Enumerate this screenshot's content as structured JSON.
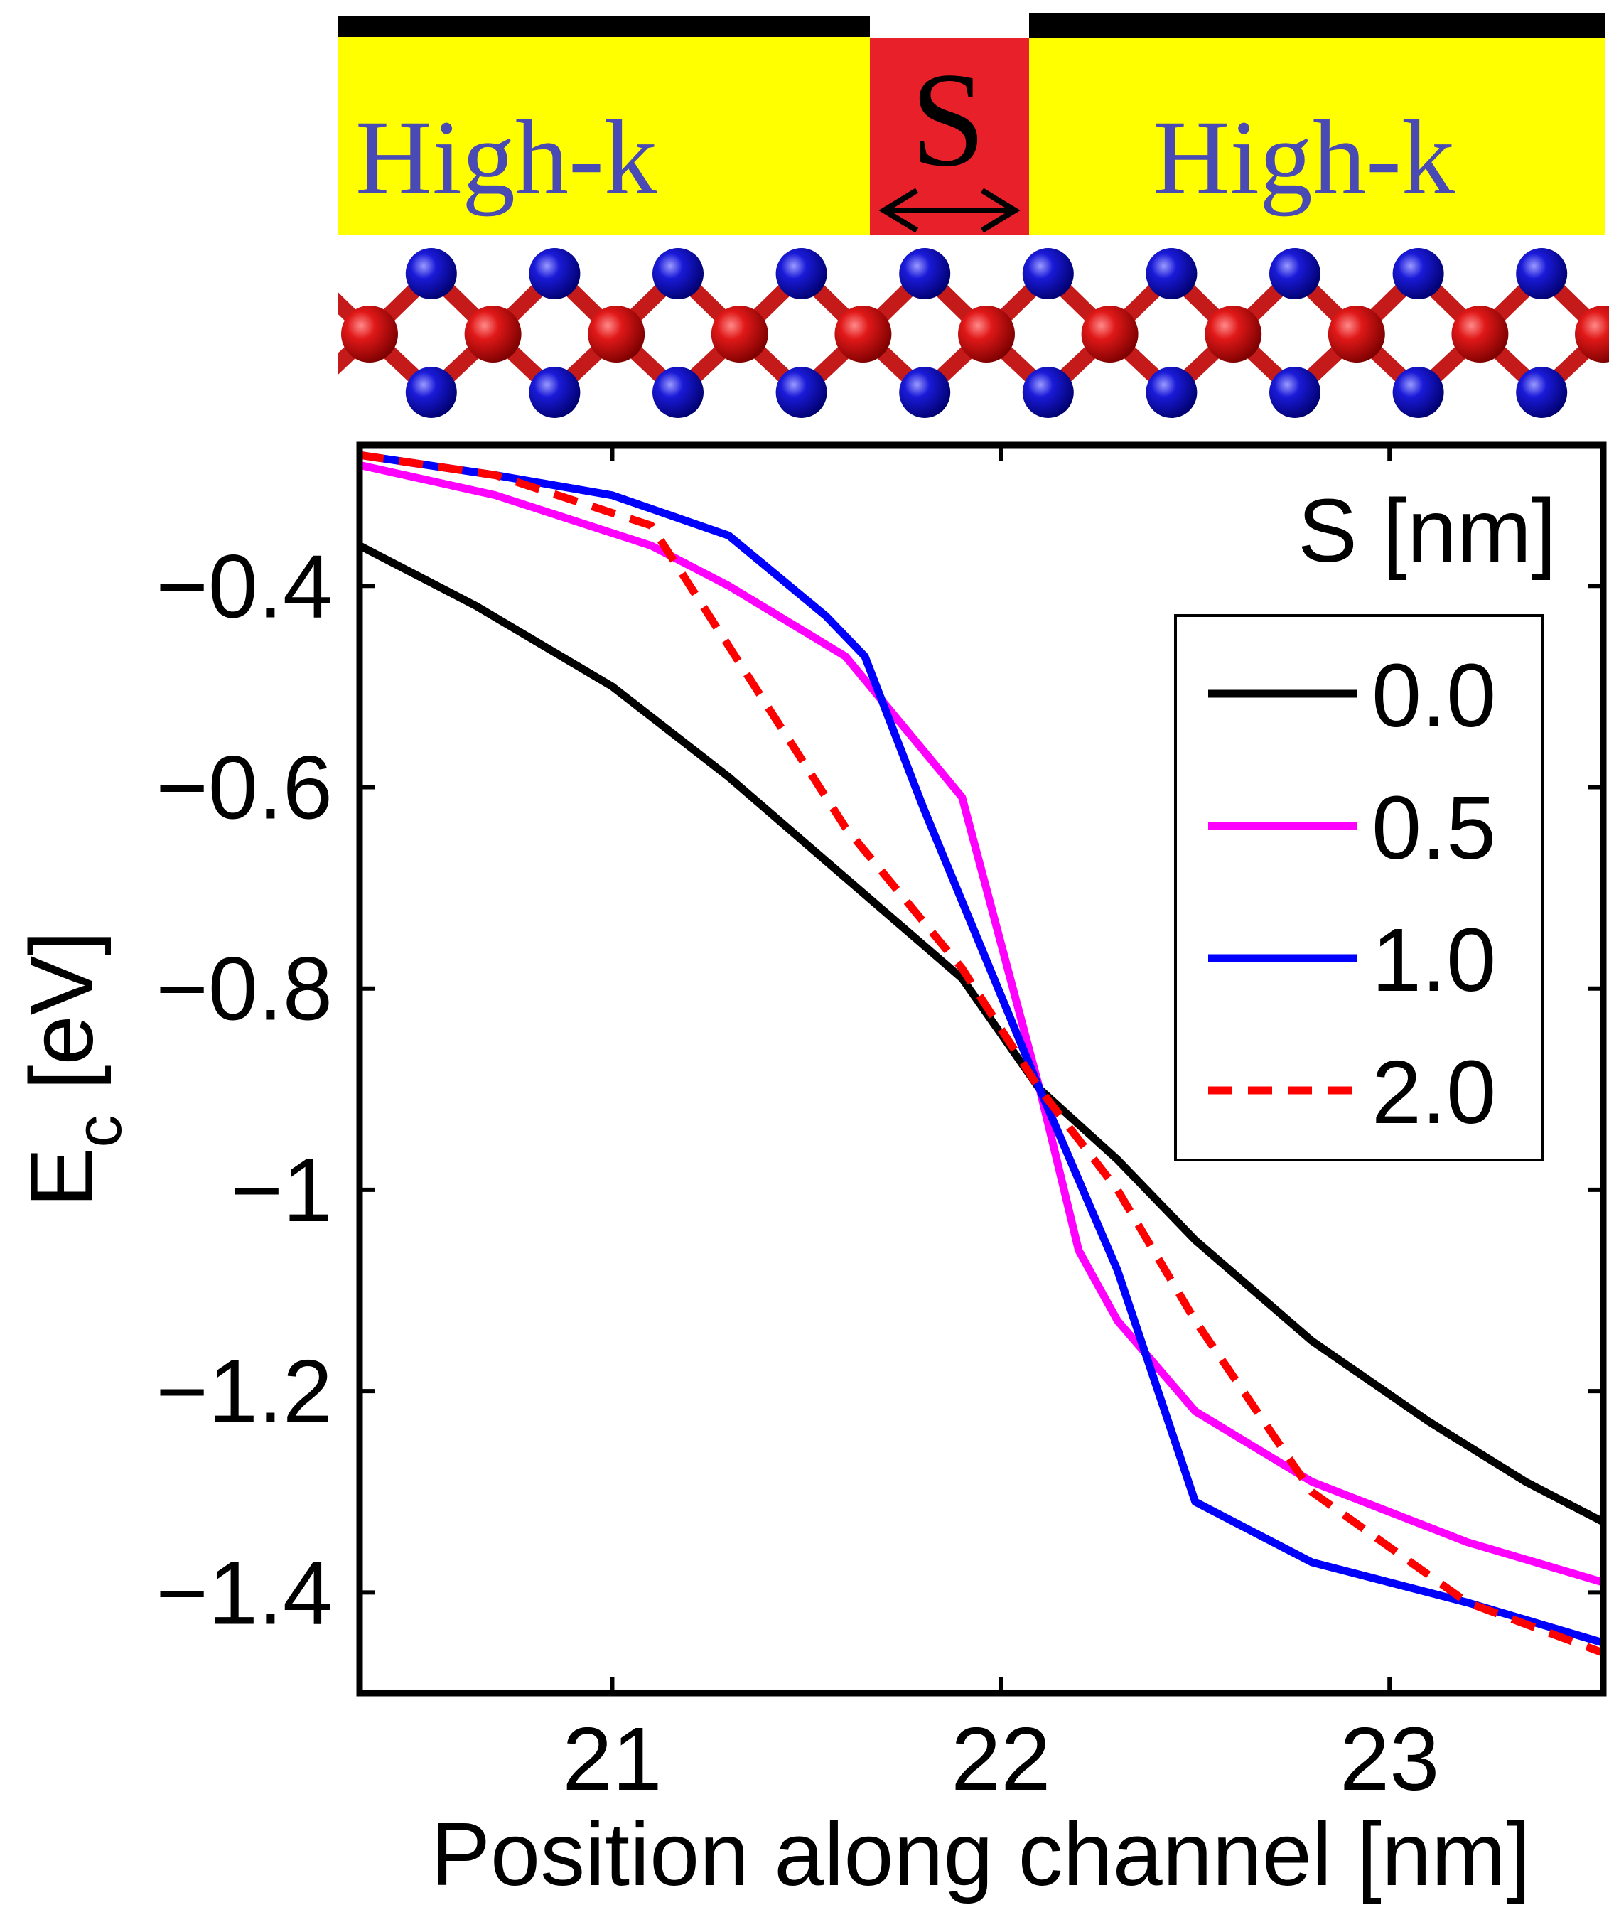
{
  "schematic": {
    "left_dielectric_label": "High-k",
    "right_dielectric_label": "High-k",
    "spacer_label": "S",
    "colors": {
      "gate": "#000000",
      "dielectric": "#ffff00",
      "dielectric_text": "#4a4ab4",
      "spacer": "#e8202a",
      "metal_atom": "#cc1111",
      "chalcogen_atom": "#1a1ad0"
    }
  },
  "legend": {
    "title": "S [nm]"
  },
  "chart_data": {
    "type": "line",
    "title": "",
    "xlabel": "Position along channel [nm]",
    "ylabel_main": "E",
    "ylabel_sub": "c",
    "ylabel_unit": " [eV]",
    "xlim": [
      20.35,
      23.55
    ],
    "ylim": [
      -1.5,
      -0.26
    ],
    "xticks": [
      21,
      22,
      23
    ],
    "xtick_labels": [
      "21",
      "22",
      "23"
    ],
    "yticks": [
      -0.4,
      -0.6,
      -0.8,
      -1.0,
      -1.2,
      -1.4
    ],
    "ytick_labels": [
      "−0.4",
      "−0.6",
      "−0.8",
      "−1",
      "−1.2",
      "−1.4"
    ],
    "grid": false,
    "legend_position": "top-right",
    "series": [
      {
        "name": "0.0",
        "color": "#000000",
        "dash": "solid",
        "x": [
          20.35,
          20.65,
          21.0,
          21.3,
          21.6,
          21.9,
          22.1,
          22.3,
          22.5,
          22.8,
          23.1,
          23.35,
          23.55
        ],
        "y": [
          -0.36,
          -0.42,
          -0.5,
          -0.59,
          -0.69,
          -0.79,
          -0.9,
          -0.97,
          -1.05,
          -1.15,
          -1.23,
          -1.29,
          -1.33
        ]
      },
      {
        "name": "0.5",
        "color": "#ff00ff",
        "dash": "solid",
        "x": [
          20.35,
          20.7,
          21.1,
          21.3,
          21.6,
          21.9,
          22.1,
          22.2,
          22.3,
          22.5,
          22.8,
          23.2,
          23.55
        ],
        "y": [
          -0.28,
          -0.31,
          -0.36,
          -0.4,
          -0.47,
          -0.61,
          -0.9,
          -1.06,
          -1.13,
          -1.22,
          -1.29,
          -1.35,
          -1.39
        ]
      },
      {
        "name": "1.0",
        "color": "#0000ff",
        "dash": "solid",
        "x": [
          20.35,
          20.7,
          21.0,
          21.3,
          21.55,
          21.65,
          21.8,
          22.1,
          22.3,
          22.5,
          22.8,
          23.2,
          23.55
        ],
        "y": [
          -0.27,
          -0.29,
          -0.31,
          -0.35,
          -0.43,
          -0.47,
          -0.62,
          -0.9,
          -1.08,
          -1.31,
          -1.37,
          -1.41,
          -1.45
        ]
      },
      {
        "name": "2.0",
        "color": "#ff0000",
        "dash": "dashed",
        "x": [
          20.35,
          20.7,
          21.1,
          21.3,
          21.6,
          21.9,
          22.1,
          22.3,
          22.5,
          22.8,
          23.2,
          23.55
        ],
        "y": [
          -0.27,
          -0.29,
          -0.34,
          -0.46,
          -0.64,
          -0.78,
          -0.9,
          -1.0,
          -1.13,
          -1.3,
          -1.41,
          -1.46
        ]
      }
    ]
  }
}
